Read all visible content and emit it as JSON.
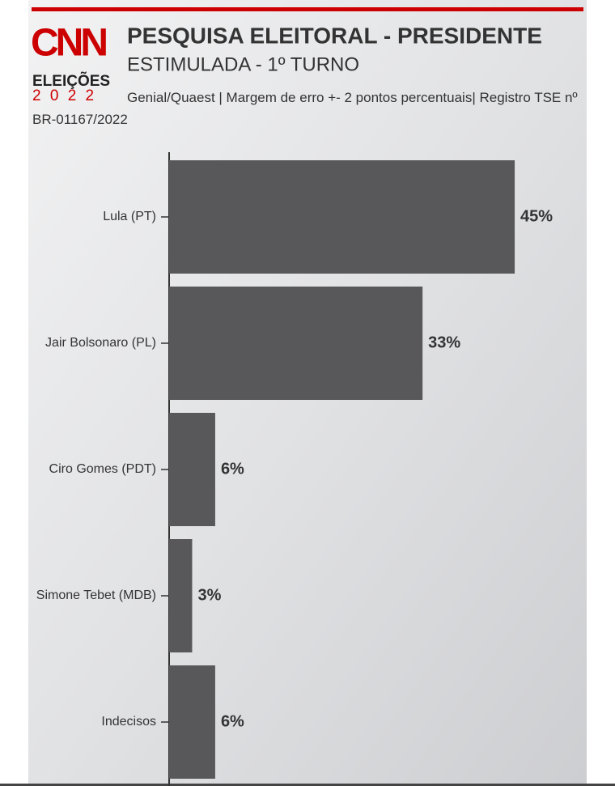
{
  "logo": {
    "brand": "CNN",
    "line1": "ELEIÇÕES",
    "year": "2 0 2 2"
  },
  "chart_data": {
    "type": "barh",
    "title": "PESQUISA ELEITORAL - PRESIDENTE",
    "subtitle": "ESTIMULADA - 1º TURNO",
    "source": "Genial/Quaest | Margem de erro +- 2 pontos percentuais| Registro TSE nº BR-01167/2022",
    "categories": [
      "Lula (PT)",
      "Jair Bolsonaro (PL)",
      "Ciro Gomes (PDT)",
      "Simone Tebet (MDB)",
      "Indecisos"
    ],
    "values": [
      45,
      33,
      6,
      3,
      6
    ],
    "value_labels": [
      "45%",
      "33%",
      "6%",
      "3%",
      "6%"
    ],
    "color": "#58585a"
  }
}
